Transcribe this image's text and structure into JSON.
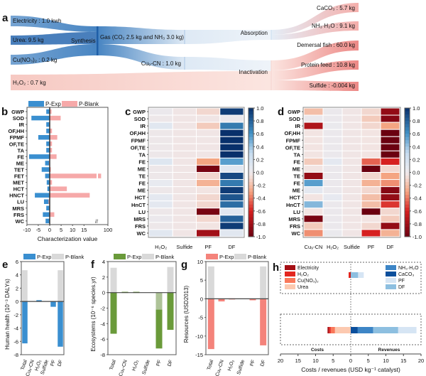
{
  "panel_letters": [
    "a",
    "b",
    "c",
    "d",
    "e",
    "f",
    "g",
    "h"
  ],
  "sankey": {
    "inputs": [
      "Electricity : 1.0 kwh",
      "Urea: 9.5 kg",
      "Cu(NO₃)₂ : 0.2 kg",
      "H₂O₂ : 0.7 kg"
    ],
    "process": "Synthesis",
    "intermediates": [
      "Gas (CO₂ 2.5 kg and NH₃ 3.0 kg)",
      "Cu₉-CN : 1.0 kg"
    ],
    "stages": [
      "Absorption",
      "Inactivation"
    ],
    "outputs": [
      "CaCO₃ : 5.7 kg",
      "NH₃·H₂O : 9.1 kg",
      "Demersal fish : 60.0 kg",
      "Protein feed : 10.8 kg",
      "Sulfide : -0.004 kg"
    ],
    "colors": {
      "blue": "#3f7fbf",
      "blue_dark": "#1f5fa8",
      "light": "#dce8f4",
      "pink": "#f6c1bb",
      "red": "#ee8a86"
    }
  },
  "chart_data": [
    {
      "panel": "b",
      "type": "bar",
      "orientation": "horizontal",
      "categories": [
        "GWP",
        "SOD",
        "IR",
        "OF,HH",
        "FPMF",
        "OF,TE",
        "TA",
        "FE",
        "ME",
        "TET",
        "FET",
        "MET",
        "HCT",
        "HNCT",
        "LU",
        "MRS",
        "FRS",
        "WC"
      ],
      "series": [
        {
          "name": "P-Exp",
          "color": "#3a8fd0",
          "values": [
            -1.5,
            -8,
            -1.5,
            -1.5,
            -5,
            -1.5,
            -1.5,
            -9,
            -2,
            -3.5,
            -2,
            -1.3,
            -1,
            -6.5,
            -2.5,
            -1.5,
            -3,
            -1.8
          ]
        },
        {
          "name": "P-Blank",
          "color": "#f6a9a9",
          "values": [
            0.8,
            4.8,
            0.2,
            1,
            3.3,
            1,
            1,
            3,
            -0.3,
            0.5,
            92,
            1,
            7.5,
            17.5,
            -0.5,
            0,
            2,
            0
          ]
        }
      ],
      "xlabel": "Characterization value",
      "xticks": [
        "-10",
        "-5",
        "0",
        "5",
        "10",
        "15",
        "100"
      ],
      "axis_break": "//",
      "xlim": [
        -10,
        100
      ]
    },
    {
      "panel": "c",
      "type": "heatmap",
      "rows": [
        "GWP",
        "SOD",
        "IR",
        "OF,HH",
        "FPMF",
        "OF,TE",
        "TA",
        "FE",
        "ME",
        "TE",
        "FE",
        "ME",
        "HCT",
        "HnCT",
        "LU",
        "MRS",
        "FRS",
        "WC"
      ],
      "columns": [
        "H₂O₂",
        "Sulfide",
        "PF",
        "DF"
      ],
      "values": [
        [
          0.02,
          -0.03,
          -0.1,
          0.95
        ],
        [
          0,
          -0.03,
          -0.03,
          0.02
        ],
        [
          0.1,
          -0.03,
          -0.15,
          0.7
        ],
        [
          0,
          -0.03,
          -0.03,
          1
        ],
        [
          0,
          -0.03,
          -0.03,
          1
        ],
        [
          0,
          -0.03,
          -0.03,
          1
        ],
        [
          0,
          -0.03,
          -0.03,
          1
        ],
        [
          0.12,
          -0.03,
          -0.3,
          0.55
        ],
        [
          0,
          -0.03,
          -0.95,
          0.1
        ],
        [
          0,
          -0.03,
          -0.1,
          0.9
        ],
        [
          0.05,
          -0.03,
          -0.25,
          0.7
        ],
        [
          0,
          -0.03,
          -0.05,
          0.95
        ],
        [
          0.08,
          -0.03,
          -0.1,
          0.85
        ],
        [
          0.08,
          -0.03,
          -0.1,
          0.75
        ],
        [
          0,
          -0.03,
          -0.95,
          0.1
        ],
        [
          0.02,
          -0.03,
          -0.1,
          0.8
        ],
        [
          0,
          -0.03,
          -0.05,
          0.95
        ],
        [
          0.1,
          -0.03,
          -0.8,
          0.1
        ]
      ],
      "colorbar_ticks": [
        "1.0",
        "0.8",
        "0.6",
        "0.4",
        "0.2",
        "0.0",
        "-0.2",
        "-0.4",
        "-0.6",
        "-0.8",
        "-1.0"
      ],
      "range": [
        -1,
        1
      ],
      "colormap": "RdBu"
    },
    {
      "panel": "d",
      "type": "heatmap",
      "rows": [
        "GWP",
        "SOD",
        "IR",
        "OF,HH",
        "FPMF",
        "OF,TE",
        "TA",
        "FE",
        "ME",
        "TE",
        "FE",
        "ME",
        "HCT",
        "HnCT",
        "LU",
        "MRS",
        "FRS",
        "WC"
      ],
      "columns": [
        "Cu₉-CN",
        "H₂O₂",
        "Sulfide",
        "PF",
        "DF"
      ],
      "values": [
        [
          -0.2,
          0.02,
          -0.03,
          -0.1,
          -0.85
        ],
        [
          0.02,
          0.02,
          -0.03,
          -0.15,
          -0.9
        ],
        [
          -0.75,
          0.03,
          -0.03,
          -0.1,
          -0.3
        ],
        [
          -0.05,
          0.02,
          -0.03,
          -0.05,
          -1
        ],
        [
          -0.05,
          0.02,
          -0.03,
          -0.05,
          -1
        ],
        [
          -0.05,
          0.02,
          -0.03,
          -0.05,
          -1
        ],
        [
          -0.05,
          0.02,
          -0.03,
          -0.05,
          -1
        ],
        [
          -0.15,
          0.08,
          -0.03,
          -0.45,
          -0.6
        ],
        [
          -0.05,
          0.02,
          -0.03,
          -1,
          -0.1
        ],
        [
          -0.85,
          0.02,
          -0.03,
          -0.1,
          -0.3
        ],
        [
          0.55,
          0.02,
          -0.03,
          -0.25,
          -0.35
        ],
        [
          0.08,
          0.02,
          -0.03,
          -0.1,
          -0.9
        ],
        [
          -0.05,
          0.06,
          -0.03,
          -0.2,
          -0.85
        ],
        [
          0.45,
          0.02,
          -0.03,
          -0.2,
          -0.55
        ],
        [
          -0.05,
          0.02,
          -0.03,
          -1,
          -0.1
        ],
        [
          -0.95,
          0.02,
          -0.03,
          -0.05,
          -0.15
        ],
        [
          -0.15,
          0.02,
          -0.03,
          -0.1,
          -0.85
        ],
        [
          -0.35,
          0.03,
          -0.03,
          -0.6,
          -0.25
        ]
      ],
      "colorbar_ticks": [
        "1.0",
        "0.8",
        "0.6",
        "0.4",
        "0.2",
        "0.0",
        "-0.2",
        "-0.4",
        "-0.6",
        "-0.8",
        "-1.0"
      ],
      "range": [
        -1,
        1
      ],
      "colormap": "RdBu"
    },
    {
      "panel": "e",
      "type": "bar",
      "categories": [
        "Total",
        "Cu₉-CN",
        "H₂O₂",
        "Sulfide",
        "PF",
        "DF"
      ],
      "series": [
        {
          "name": "P-Exp",
          "color": "#3a8fd0",
          "values": [
            -6.3,
            0,
            0.2,
            0,
            -0.8,
            -6.8
          ]
        },
        {
          "name": "P-Blank",
          "color": "#d9d9d9",
          "values": [
            4.7,
            0,
            0,
            0,
            0,
            4.7
          ]
        }
      ],
      "ylabel": "Human health (10⁻³ DALYs)",
      "ylim": [
        -8,
        6
      ],
      "yticks": [
        "6",
        "4",
        "2",
        "0",
        "-2",
        "-4",
        "-6",
        "-8"
      ]
    },
    {
      "panel": "f",
      "type": "bar",
      "categories": [
        "Total",
        "Cu₉-CN",
        "H₂O₂",
        "Sulfide",
        "PF",
        "DF"
      ],
      "series": [
        {
          "name": "P-Exp",
          "color": "#6a9a3a",
          "values": [
            -5.3,
            0.1,
            0.1,
            0,
            -7.2,
            -4.8
          ]
        },
        {
          "name": "P-Blank",
          "color": "#d9d9d9",
          "values": [
            3.2,
            0,
            0,
            0,
            -2.2,
            3.3
          ]
        }
      ],
      "ylabel": "Ecosystems (10⁻⁶ species.yr)",
      "ylim": [
        -8,
        4
      ],
      "yticks": [
        "4",
        "2",
        "0",
        "-2",
        "-4",
        "-6",
        "-8"
      ]
    },
    {
      "panel": "g",
      "type": "bar",
      "categories": [
        "Total",
        "Cu₉-CN",
        "H₂O₂",
        "Sulfide",
        "PF",
        "DF"
      ],
      "series": [
        {
          "name": "P-Exp",
          "color": "#f4837b",
          "values": [
            -13.5,
            -0.7,
            0.1,
            0,
            -0.4,
            -12.5
          ]
        },
        {
          "name": "P-Blank",
          "color": "#d9d9d9",
          "values": [
            8.7,
            0,
            0,
            0,
            0,
            8.7
          ]
        }
      ],
      "ylabel": "Resources (USD2013)",
      "ylim": [
        -15,
        10
      ],
      "yticks": [
        "10",
        "5",
        "0",
        "-5",
        "-10",
        "-15"
      ]
    },
    {
      "panel": "h",
      "type": "bar",
      "orientation": "horizontal",
      "stacked": true,
      "rows": [
        {
          "costs": [
            {
              "name": "Electricity",
              "value": 0.1
            },
            {
              "name": "H₂O₂",
              "value": 0.5
            }
          ],
          "revenues": [
            {
              "name": "DF",
              "value": 2.1
            },
            {
              "name": "PF",
              "value": 1.6
            }
          ]
        },
        {
          "costs": [
            {
              "name": "Urea",
              "value": 4.5
            },
            {
              "name": "Cu(NO₃)₂",
              "value": 1.2
            },
            {
              "name": "H₂O₂",
              "value": 0.5
            },
            {
              "name": "Electricity",
              "value": 0.4
            }
          ],
          "revenues": [
            {
              "name": "CaCO₃",
              "value": 2.0
            },
            {
              "name": "NH₃·H₂O",
              "value": 4.4
            },
            {
              "name": "DF",
              "value": 7.1
            },
            {
              "name": "PF",
              "value": 5.2
            }
          ]
        }
      ],
      "legend_costs": [
        {
          "name": "Electricity",
          "color": "#a50f15"
        },
        {
          "name": "H₂O₂",
          "color": "#e3261f"
        },
        {
          "name": "Cu(NO₃)₂",
          "color": "#f9785a"
        },
        {
          "name": "Urea",
          "color": "#fcc9b0"
        }
      ],
      "legend_revenues": [
        {
          "name": "NH₃·H₂O",
          "color": "#3d85c6"
        },
        {
          "name": "CaCO₃",
          "color": "#0b4f9c"
        },
        {
          "name": "PF",
          "color": "#d6e5f4"
        },
        {
          "name": "DF",
          "color": "#8dbfe0"
        }
      ],
      "side_labels": [
        "Costs",
        "Revenues"
      ],
      "xlabel": "Costs / revenues (USD kg⁻¹ catalyst)",
      "xticks": [
        "20",
        "15",
        "10",
        "5",
        "0",
        "5",
        "10",
        "15",
        "20"
      ],
      "xlim": [
        -20,
        20
      ]
    }
  ]
}
